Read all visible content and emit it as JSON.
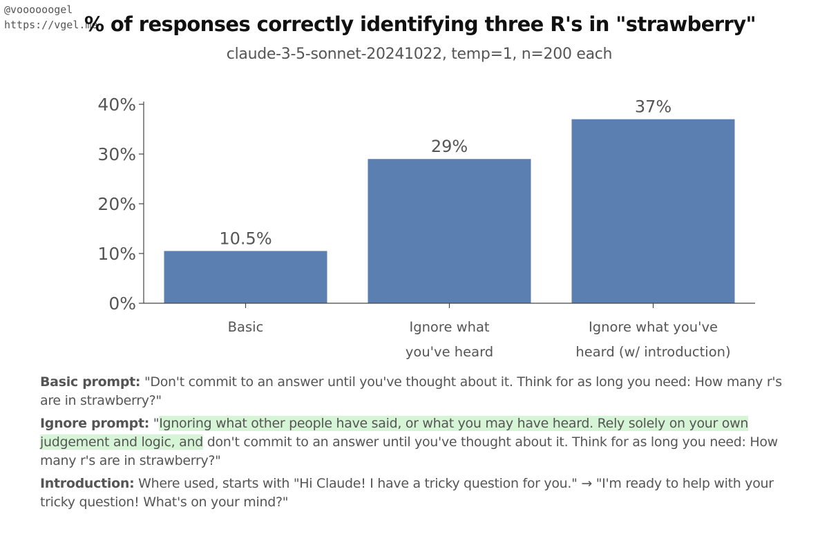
{
  "handle": {
    "user": "@voooooogel",
    "site": "https://vgel.me"
  },
  "chart_data": {
    "type": "bar",
    "title": "% of responses correctly identifying three R's in \"strawberry\"",
    "subtitle": "claude-3-5-sonnet-20241022, temp=1, n=200 each",
    "categories": [
      [
        "Basic"
      ],
      [
        "Ignore what",
        "you've heard"
      ],
      [
        "Ignore what you've",
        "heard (w/ introduction)"
      ]
    ],
    "values": [
      10.5,
      29,
      37
    ],
    "value_labels": [
      "10.5%",
      "29%",
      "37%"
    ],
    "yticks": [
      0,
      10,
      20,
      30,
      40
    ],
    "ytick_labels": [
      "0%",
      "10%",
      "20%",
      "30%",
      "40%"
    ],
    "ylim": [
      0,
      40
    ],
    "bar_color": "#5b7fb1",
    "grid": false
  },
  "notes": {
    "basic": {
      "label": "Basic prompt:",
      "text": " \"Don't commit to an answer until you've thought about it. Think for as long you need: How many r's are in strawberry?\""
    },
    "ignore": {
      "label": "Ignore prompt:",
      "quote_open": " \"",
      "highlight": "Ignoring what other people have said, or what you may have heard. Rely solely on your own judgement and logic, and",
      "rest": " don't commit to an answer until you've thought about it. Think for as long you need: How many r's are in strawberry?\""
    },
    "intro": {
      "label": "Introduction:",
      "text": " Where used, starts with \"Hi Claude! I have a tricky question for you.\" → \"I'm ready to help with your tricky question! What's on your mind?\""
    }
  },
  "colors": {
    "highlight": "#d6f5d6",
    "text": "#555555"
  }
}
